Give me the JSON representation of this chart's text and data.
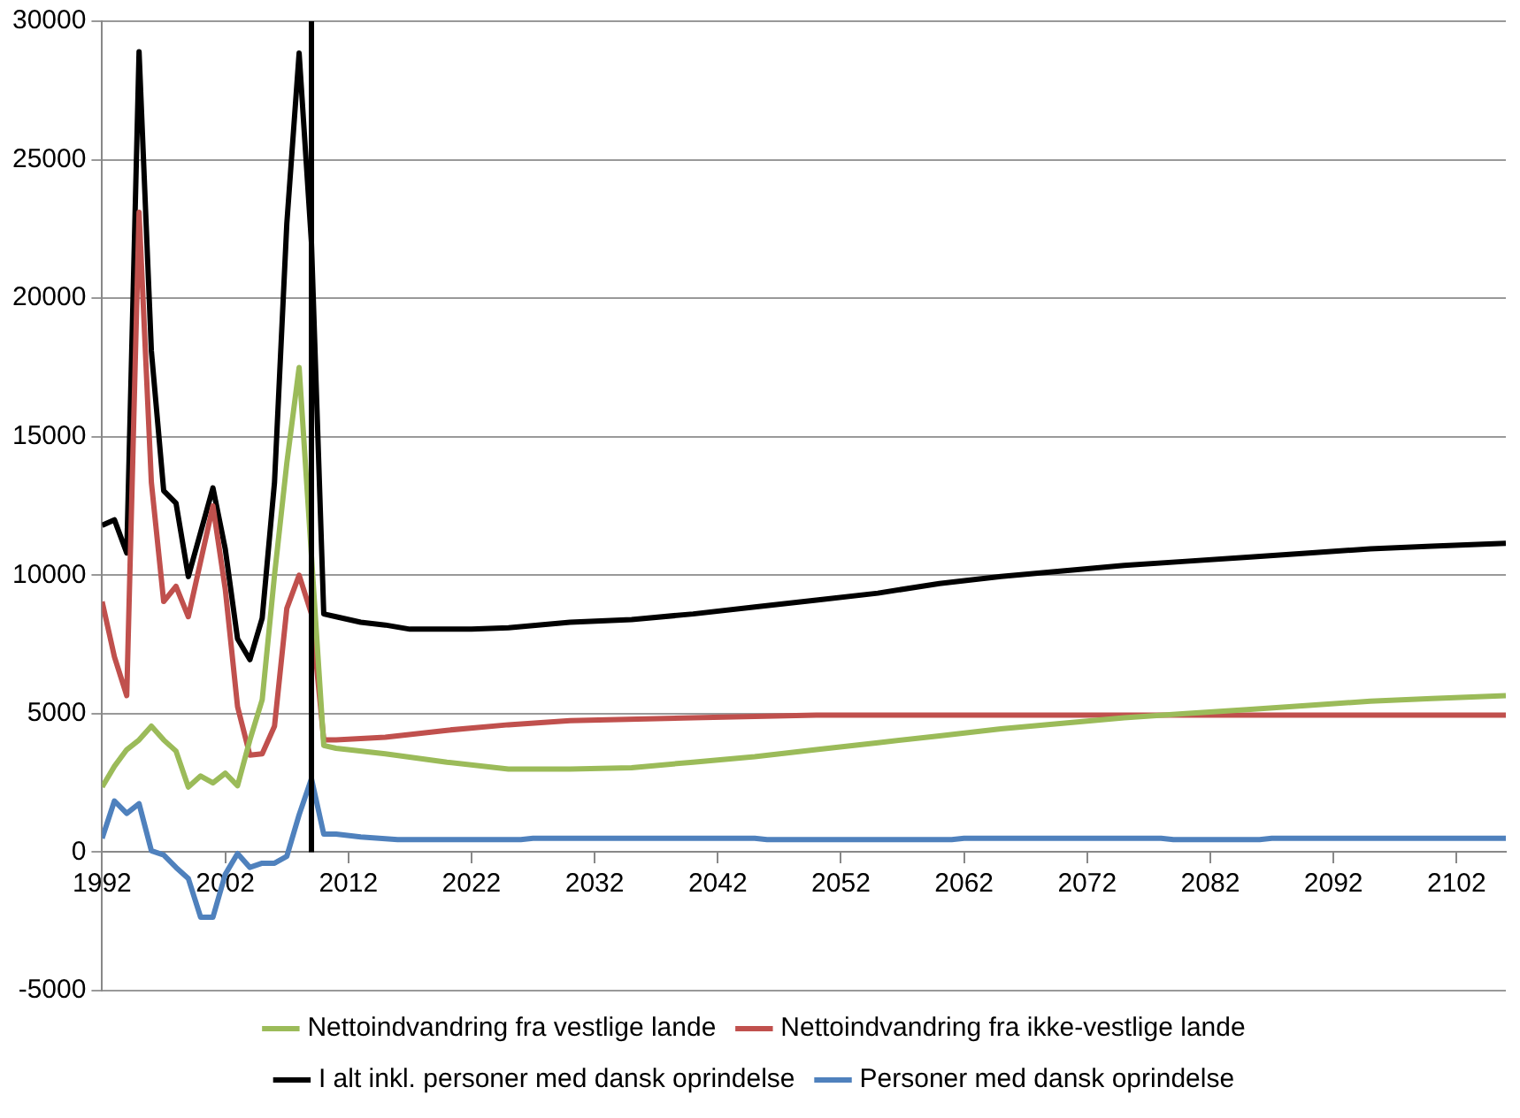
{
  "chart_data": {
    "type": "line",
    "xlim": [
      1992,
      2106
    ],
    "xticks": [
      1992,
      2002,
      2012,
      2022,
      2032,
      2042,
      2052,
      2062,
      2072,
      2082,
      2092,
      2102
    ],
    "ylim": [
      -5000,
      30000
    ],
    "yticks": [
      -5000,
      0,
      5000,
      10000,
      15000,
      20000,
      25000,
      30000
    ],
    "grid": "y",
    "legend": "bottom",
    "marker": "none",
    "line_style": "solid",
    "ref_lines": [
      {
        "axis": "x",
        "value": 2009,
        "color": "#000000"
      }
    ],
    "series": [
      {
        "name": "Nettoindvandring fra vestlige lande",
        "color": "#9bbb59",
        "x": [
          1992,
          1993,
          1994,
          1995,
          1996,
          1997,
          1998,
          1999,
          2000,
          2001,
          2002,
          2003,
          2004,
          2005,
          2006,
          2007,
          2008,
          2009,
          2010,
          2011,
          2015,
          2020,
          2025,
          2030,
          2035,
          2040,
          2045,
          2050,
          2055,
          2060,
          2065,
          2070,
          2075,
          2080,
          2085,
          2090,
          2095,
          2100,
          2106
        ],
        "values": [
          2350,
          3100,
          3700,
          4050,
          4550,
          4050,
          3650,
          2350,
          2750,
          2500,
          2850,
          2400,
          4050,
          5500,
          10000,
          14050,
          17500,
          10700,
          3850,
          3750,
          3550,
          3250,
          3000,
          3000,
          3050,
          3250,
          3450,
          3700,
          3950,
          4200,
          4450,
          4650,
          4850,
          5000,
          5150,
          5300,
          5450,
          5550,
          5650
        ]
      },
      {
        "name": "Nettoindvandring fra ikke-vestlige lande",
        "color": "#c0504d",
        "x": [
          1992,
          1993,
          1994,
          1995,
          1996,
          1997,
          1998,
          1999,
          2000,
          2001,
          2002,
          2003,
          2004,
          2005,
          2006,
          2007,
          2008,
          2009,
          2010,
          2011,
          2015,
          2020,
          2025,
          2030,
          2040,
          2050,
          2106
        ],
        "values": [
          9050,
          7050,
          5650,
          23100,
          13350,
          9050,
          9600,
          8500,
          10500,
          12500,
          9500,
          5250,
          3500,
          3550,
          4550,
          8800,
          10000,
          8600,
          4050,
          4050,
          4150,
          4400,
          4600,
          4750,
          4850,
          4950,
          4950
        ]
      },
      {
        "name": "I alt inkl. personer med dansk oprindelse",
        "color": "#000000",
        "x": [
          1992,
          1993,
          1994,
          1995,
          1996,
          1997,
          1998,
          1999,
          2000,
          2001,
          2002,
          2003,
          2004,
          2005,
          2006,
          2007,
          2008,
          2009,
          2010,
          2011,
          2013,
          2015,
          2017,
          2022,
          2025,
          2030,
          2035,
          2040,
          2045,
          2050,
          2055,
          2060,
          2065,
          2070,
          2075,
          2080,
          2085,
          2090,
          2095,
          2100,
          2106
        ],
        "values": [
          11800,
          12000,
          10800,
          28900,
          18100,
          13050,
          12600,
          9950,
          11550,
          13150,
          10950,
          7700,
          6950,
          8450,
          13350,
          22700,
          28850,
          22000,
          8600,
          8500,
          8300,
          8200,
          8050,
          8050,
          8100,
          8300,
          8400,
          8600,
          8850,
          9100,
          9350,
          9700,
          9950,
          10150,
          10350,
          10500,
          10650,
          10800,
          10950,
          11050,
          11150
        ]
      },
      {
        "name": "Personer med dansk oprindelse",
        "color": "#4f81bd",
        "x": [
          1992,
          1993,
          1994,
          1995,
          1996,
          1997,
          1998,
          1999,
          2000,
          2001,
          2002,
          2003,
          2004,
          2005,
          2006,
          2007,
          2008,
          2009,
          2010,
          2011,
          2013,
          2016,
          2026,
          2027,
          2045,
          2046,
          2061,
          2062,
          2078,
          2079,
          2086,
          2087,
          2106
        ],
        "values": [
          500,
          1850,
          1400,
          1750,
          50,
          -100,
          -550,
          -950,
          -2350,
          -2350,
          -800,
          -50,
          -550,
          -400,
          -400,
          -150,
          1350,
          2650,
          650,
          650,
          550,
          450,
          450,
          500,
          500,
          450,
          450,
          500,
          500,
          450,
          450,
          500,
          500
        ]
      }
    ]
  }
}
